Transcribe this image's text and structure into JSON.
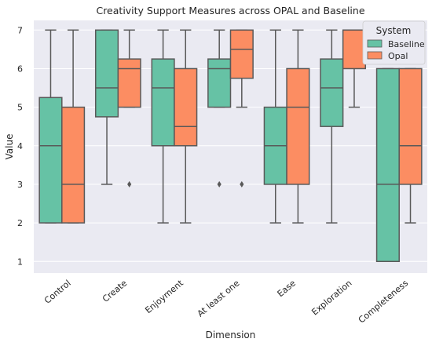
{
  "chart_data": {
    "type": "box",
    "title": "Creativity Support Measures across OPAL and Baseline",
    "xlabel": "Dimension",
    "ylabel": "Value",
    "ylim": [
      0.7,
      7.25
    ],
    "yticks": [
      1,
      2,
      3,
      4,
      5,
      6,
      7
    ],
    "grid": true,
    "legend": {
      "title": "System",
      "placement": "top-right"
    },
    "categories": [
      "Control",
      "Create",
      "Enjoyment",
      "At least one",
      "Ease",
      "Exploration",
      "Completeness"
    ],
    "series": [
      {
        "name": "Baseline",
        "color": "#66c2a5",
        "boxes": [
          {
            "min": 2,
            "q1": 2,
            "median": 4,
            "q3": 5.25,
            "max": 7,
            "outliers": []
          },
          {
            "min": 3,
            "q1": 4.75,
            "median": 5.5,
            "q3": 7,
            "max": 7,
            "outliers": []
          },
          {
            "min": 2,
            "q1": 4,
            "median": 5.5,
            "q3": 6.25,
            "max": 7,
            "outliers": []
          },
          {
            "min": 5,
            "q1": 5,
            "median": 6,
            "q3": 6.25,
            "max": 7,
            "outliers": [
              3
            ]
          },
          {
            "min": 2,
            "q1": 3,
            "median": 4,
            "q3": 5,
            "max": 7,
            "outliers": []
          },
          {
            "min": 2,
            "q1": 4.5,
            "median": 5.5,
            "q3": 6.25,
            "max": 7,
            "outliers": []
          },
          {
            "min": 1,
            "q1": 1,
            "median": 3,
            "q3": 6,
            "max": 6,
            "outliers": []
          }
        ]
      },
      {
        "name": "Opal",
        "color": "#fc8d62",
        "boxes": [
          {
            "min": 2,
            "q1": 2,
            "median": 3,
            "q3": 5,
            "max": 7,
            "outliers": []
          },
          {
            "min": 5,
            "q1": 5,
            "median": 6,
            "q3": 6.25,
            "max": 7,
            "outliers": [
              3
            ]
          },
          {
            "min": 2,
            "q1": 4,
            "median": 4.5,
            "q3": 6,
            "max": 7,
            "outliers": []
          },
          {
            "min": 5,
            "q1": 5.75,
            "median": 6.5,
            "q3": 7,
            "max": 7,
            "outliers": [
              3
            ]
          },
          {
            "min": 2,
            "q1": 3,
            "median": 5,
            "q3": 6,
            "max": 7,
            "outliers": []
          },
          {
            "min": 5,
            "q1": 6,
            "median": 7,
            "q3": 7,
            "max": 7,
            "outliers": []
          },
          {
            "min": 2,
            "q1": 3,
            "median": 4,
            "q3": 6,
            "max": 6,
            "outliers": []
          }
        ]
      }
    ]
  }
}
